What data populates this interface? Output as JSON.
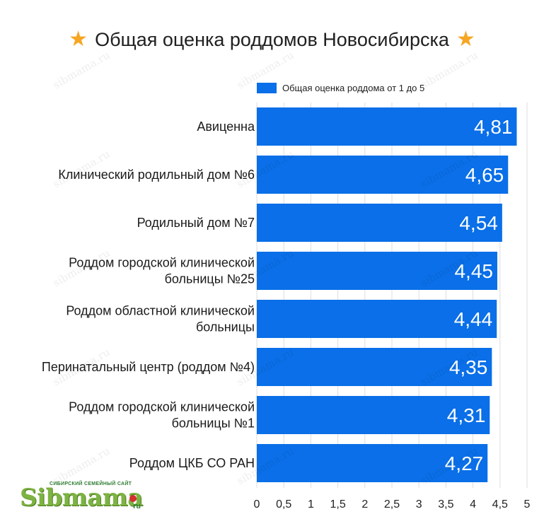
{
  "header": {
    "title": "Общая оценка роддомов Новосибирска",
    "star_icon": "star-icon"
  },
  "watermark_text": "sibmama.ru",
  "logo": {
    "tagline": "СИБИРСКИЙ СЕМЕЙНЫЙ САЙТ",
    "name": "Sibmama",
    "suffix": "ru"
  },
  "colors": {
    "bar": "#0a6fe8",
    "star": "#f5a623",
    "grid": "#dddddd"
  },
  "chart_data": {
    "type": "bar",
    "orientation": "horizontal",
    "title": "Общая оценка роддомов Новосибирска",
    "legend": "top-left",
    "categories": [
      [
        "Авиценна"
      ],
      [
        "Клинический родильный дом №6"
      ],
      [
        "Родильный дом №7"
      ],
      [
        "Роддом городской клинической",
        "больницы №25"
      ],
      [
        "Роддом областной клинической",
        "больницы"
      ],
      [
        "Перинатальный центр (роддом №4)"
      ],
      [
        "Роддом городской клинической",
        "больницы №1"
      ],
      [
        "Роддом ЦКБ СО РАН"
      ]
    ],
    "series": [
      {
        "name": "Общая оценка роддома от 1 до 5",
        "values": [
          4.81,
          4.65,
          4.54,
          4.45,
          4.44,
          4.35,
          4.31,
          4.27
        ],
        "labels": [
          "4,81",
          "4,65",
          "4,54",
          "4,45",
          "4,44",
          "4,35",
          "4,31",
          "4,27"
        ]
      }
    ],
    "xlim": [
      0,
      5
    ],
    "xticks": [
      "0",
      "0,5",
      "1",
      "1,5",
      "2",
      "2,5",
      "3",
      "3,5",
      "4",
      "4,5",
      "5"
    ],
    "grid": true
  }
}
